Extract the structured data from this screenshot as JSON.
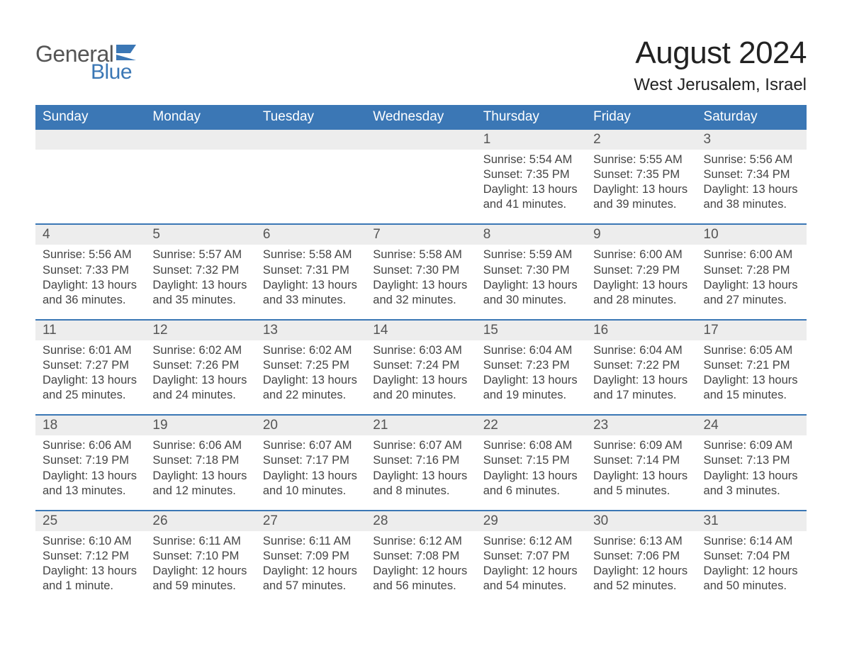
{
  "logo": {
    "word1": "General",
    "word2": "Blue",
    "flag_color": "#3b77b5"
  },
  "title": "August 2024",
  "location": "West Jerusalem, Israel",
  "colors": {
    "header_bg": "#3b77b5",
    "header_text": "#ffffff",
    "daynum_bg": "#ededed",
    "body_text": "#444444",
    "page_bg": "#ffffff"
  },
  "typography": {
    "title_fontsize": 44,
    "location_fontsize": 24,
    "dayheader_fontsize": 19,
    "daynum_fontsize": 19,
    "body_fontsize": 16.5
  },
  "day_labels": [
    "Sunday",
    "Monday",
    "Tuesday",
    "Wednesday",
    "Thursday",
    "Friday",
    "Saturday"
  ],
  "weeks": [
    [
      null,
      null,
      null,
      null,
      {
        "n": "1",
        "sunrise": "Sunrise: 5:54 AM",
        "sunset": "Sunset: 7:35 PM",
        "dl1": "Daylight: 13 hours",
        "dl2": "and 41 minutes."
      },
      {
        "n": "2",
        "sunrise": "Sunrise: 5:55 AM",
        "sunset": "Sunset: 7:35 PM",
        "dl1": "Daylight: 13 hours",
        "dl2": "and 39 minutes."
      },
      {
        "n": "3",
        "sunrise": "Sunrise: 5:56 AM",
        "sunset": "Sunset: 7:34 PM",
        "dl1": "Daylight: 13 hours",
        "dl2": "and 38 minutes."
      }
    ],
    [
      {
        "n": "4",
        "sunrise": "Sunrise: 5:56 AM",
        "sunset": "Sunset: 7:33 PM",
        "dl1": "Daylight: 13 hours",
        "dl2": "and 36 minutes."
      },
      {
        "n": "5",
        "sunrise": "Sunrise: 5:57 AM",
        "sunset": "Sunset: 7:32 PM",
        "dl1": "Daylight: 13 hours",
        "dl2": "and 35 minutes."
      },
      {
        "n": "6",
        "sunrise": "Sunrise: 5:58 AM",
        "sunset": "Sunset: 7:31 PM",
        "dl1": "Daylight: 13 hours",
        "dl2": "and 33 minutes."
      },
      {
        "n": "7",
        "sunrise": "Sunrise: 5:58 AM",
        "sunset": "Sunset: 7:30 PM",
        "dl1": "Daylight: 13 hours",
        "dl2": "and 32 minutes."
      },
      {
        "n": "8",
        "sunrise": "Sunrise: 5:59 AM",
        "sunset": "Sunset: 7:30 PM",
        "dl1": "Daylight: 13 hours",
        "dl2": "and 30 minutes."
      },
      {
        "n": "9",
        "sunrise": "Sunrise: 6:00 AM",
        "sunset": "Sunset: 7:29 PM",
        "dl1": "Daylight: 13 hours",
        "dl2": "and 28 minutes."
      },
      {
        "n": "10",
        "sunrise": "Sunrise: 6:00 AM",
        "sunset": "Sunset: 7:28 PM",
        "dl1": "Daylight: 13 hours",
        "dl2": "and 27 minutes."
      }
    ],
    [
      {
        "n": "11",
        "sunrise": "Sunrise: 6:01 AM",
        "sunset": "Sunset: 7:27 PM",
        "dl1": "Daylight: 13 hours",
        "dl2": "and 25 minutes."
      },
      {
        "n": "12",
        "sunrise": "Sunrise: 6:02 AM",
        "sunset": "Sunset: 7:26 PM",
        "dl1": "Daylight: 13 hours",
        "dl2": "and 24 minutes."
      },
      {
        "n": "13",
        "sunrise": "Sunrise: 6:02 AM",
        "sunset": "Sunset: 7:25 PM",
        "dl1": "Daylight: 13 hours",
        "dl2": "and 22 minutes."
      },
      {
        "n": "14",
        "sunrise": "Sunrise: 6:03 AM",
        "sunset": "Sunset: 7:24 PM",
        "dl1": "Daylight: 13 hours",
        "dl2": "and 20 minutes."
      },
      {
        "n": "15",
        "sunrise": "Sunrise: 6:04 AM",
        "sunset": "Sunset: 7:23 PM",
        "dl1": "Daylight: 13 hours",
        "dl2": "and 19 minutes."
      },
      {
        "n": "16",
        "sunrise": "Sunrise: 6:04 AM",
        "sunset": "Sunset: 7:22 PM",
        "dl1": "Daylight: 13 hours",
        "dl2": "and 17 minutes."
      },
      {
        "n": "17",
        "sunrise": "Sunrise: 6:05 AM",
        "sunset": "Sunset: 7:21 PM",
        "dl1": "Daylight: 13 hours",
        "dl2": "and 15 minutes."
      }
    ],
    [
      {
        "n": "18",
        "sunrise": "Sunrise: 6:06 AM",
        "sunset": "Sunset: 7:19 PM",
        "dl1": "Daylight: 13 hours",
        "dl2": "and 13 minutes."
      },
      {
        "n": "19",
        "sunrise": "Sunrise: 6:06 AM",
        "sunset": "Sunset: 7:18 PM",
        "dl1": "Daylight: 13 hours",
        "dl2": "and 12 minutes."
      },
      {
        "n": "20",
        "sunrise": "Sunrise: 6:07 AM",
        "sunset": "Sunset: 7:17 PM",
        "dl1": "Daylight: 13 hours",
        "dl2": "and 10 minutes."
      },
      {
        "n": "21",
        "sunrise": "Sunrise: 6:07 AM",
        "sunset": "Sunset: 7:16 PM",
        "dl1": "Daylight: 13 hours",
        "dl2": "and 8 minutes."
      },
      {
        "n": "22",
        "sunrise": "Sunrise: 6:08 AM",
        "sunset": "Sunset: 7:15 PM",
        "dl1": "Daylight: 13 hours",
        "dl2": "and 6 minutes."
      },
      {
        "n": "23",
        "sunrise": "Sunrise: 6:09 AM",
        "sunset": "Sunset: 7:14 PM",
        "dl1": "Daylight: 13 hours",
        "dl2": "and 5 minutes."
      },
      {
        "n": "24",
        "sunrise": "Sunrise: 6:09 AM",
        "sunset": "Sunset: 7:13 PM",
        "dl1": "Daylight: 13 hours",
        "dl2": "and 3 minutes."
      }
    ],
    [
      {
        "n": "25",
        "sunrise": "Sunrise: 6:10 AM",
        "sunset": "Sunset: 7:12 PM",
        "dl1": "Daylight: 13 hours",
        "dl2": "and 1 minute."
      },
      {
        "n": "26",
        "sunrise": "Sunrise: 6:11 AM",
        "sunset": "Sunset: 7:10 PM",
        "dl1": "Daylight: 12 hours",
        "dl2": "and 59 minutes."
      },
      {
        "n": "27",
        "sunrise": "Sunrise: 6:11 AM",
        "sunset": "Sunset: 7:09 PM",
        "dl1": "Daylight: 12 hours",
        "dl2": "and 57 minutes."
      },
      {
        "n": "28",
        "sunrise": "Sunrise: 6:12 AM",
        "sunset": "Sunset: 7:08 PM",
        "dl1": "Daylight: 12 hours",
        "dl2": "and 56 minutes."
      },
      {
        "n": "29",
        "sunrise": "Sunrise: 6:12 AM",
        "sunset": "Sunset: 7:07 PM",
        "dl1": "Daylight: 12 hours",
        "dl2": "and 54 minutes."
      },
      {
        "n": "30",
        "sunrise": "Sunrise: 6:13 AM",
        "sunset": "Sunset: 7:06 PM",
        "dl1": "Daylight: 12 hours",
        "dl2": "and 52 minutes."
      },
      {
        "n": "31",
        "sunrise": "Sunrise: 6:14 AM",
        "sunset": "Sunset: 7:04 PM",
        "dl1": "Daylight: 12 hours",
        "dl2": "and 50 minutes."
      }
    ]
  ]
}
